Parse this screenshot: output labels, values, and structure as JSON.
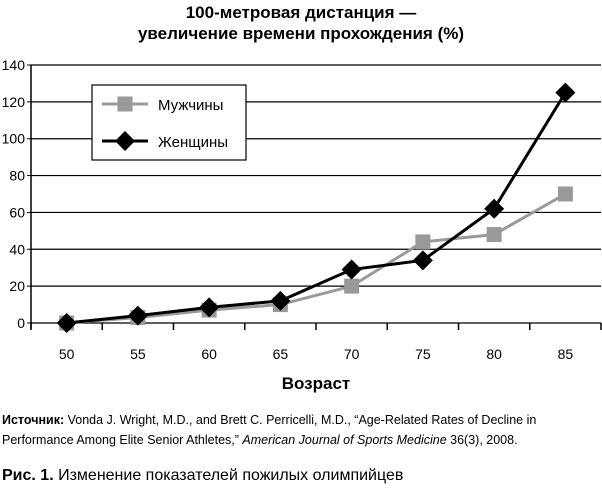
{
  "chart_data": {
    "type": "line",
    "title": [
      "100-метровая дистанция —",
      "увеличение времени прохождения (%)"
    ],
    "xlabel": "Возраст",
    "ylabel": "",
    "categories": [
      "50",
      "55",
      "60",
      "65",
      "70",
      "75",
      "80",
      "85"
    ],
    "ylim": [
      0,
      140
    ],
    "yticks": [
      "0",
      "20",
      "40",
      "60",
      "80",
      "100",
      "120",
      "140"
    ],
    "grid": true,
    "legend": "top-left",
    "series": [
      {
        "name": "Мужчины",
        "color": "#999999",
        "marker": "square",
        "values": [
          0,
          3,
          7,
          10,
          20,
          44,
          48,
          70
        ]
      },
      {
        "name": "Женщины",
        "color": "#000000",
        "marker": "diamond",
        "values": [
          0,
          4,
          8.5,
          12,
          29,
          34,
          62,
          125
        ]
      }
    ]
  },
  "source": {
    "label": "Источник:",
    "text": " Vonda J. Wright, M.D., and Brett C. Perricelli, M.D., “Age-Related Rates of Decline in Performance Among Elite Senior Athletes,” ",
    "journal": "American Journal of Sports Medicine",
    "tail": " 36(3), 2008."
  },
  "caption": {
    "label": "Рис. 1.",
    "text": " Изменение показателей пожилых олимпийцев"
  }
}
